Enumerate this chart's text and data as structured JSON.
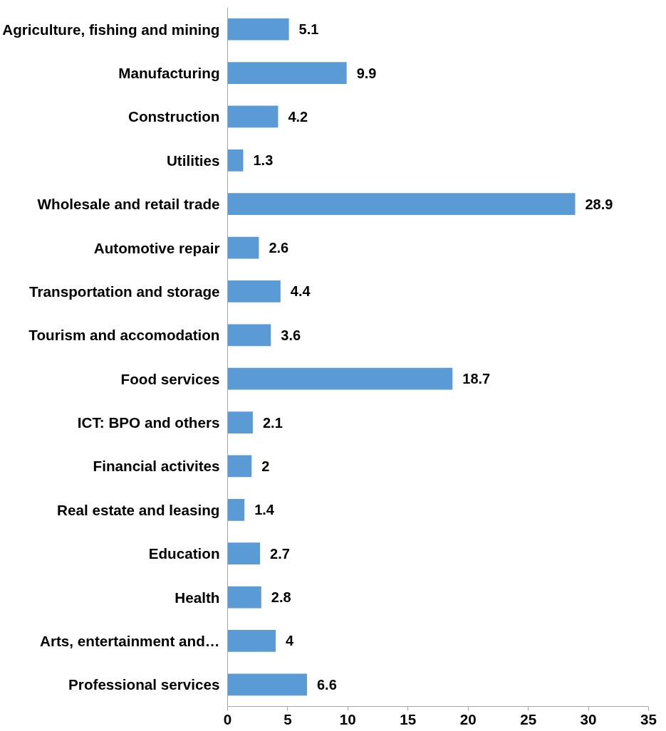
{
  "chart_data": {
    "type": "bar",
    "orientation": "horizontal",
    "categories": [
      "Agriculture, fishing and mining",
      "Manufacturing",
      "Construction",
      "Utilities",
      "Wholesale and retail trade",
      "Automotive repair",
      "Transportation and storage",
      "Tourism and accomodation",
      "Food services",
      "ICT: BPO and others",
      "Financial activites",
      "Real estate and leasing",
      "Education",
      "Health",
      "Arts, entertainment and…",
      "Professional services"
    ],
    "values": [
      5.1,
      9.9,
      4.2,
      1.3,
      28.9,
      2.6,
      4.4,
      3.6,
      18.7,
      2.1,
      2,
      1.4,
      2.7,
      2.8,
      4,
      6.6
    ],
    "color": "#5b9bd5",
    "xlim": [
      0,
      35
    ],
    "xticks": [
      0,
      5,
      10,
      15,
      20,
      25,
      30,
      35
    ],
    "grid": false,
    "data_labels": true
  }
}
